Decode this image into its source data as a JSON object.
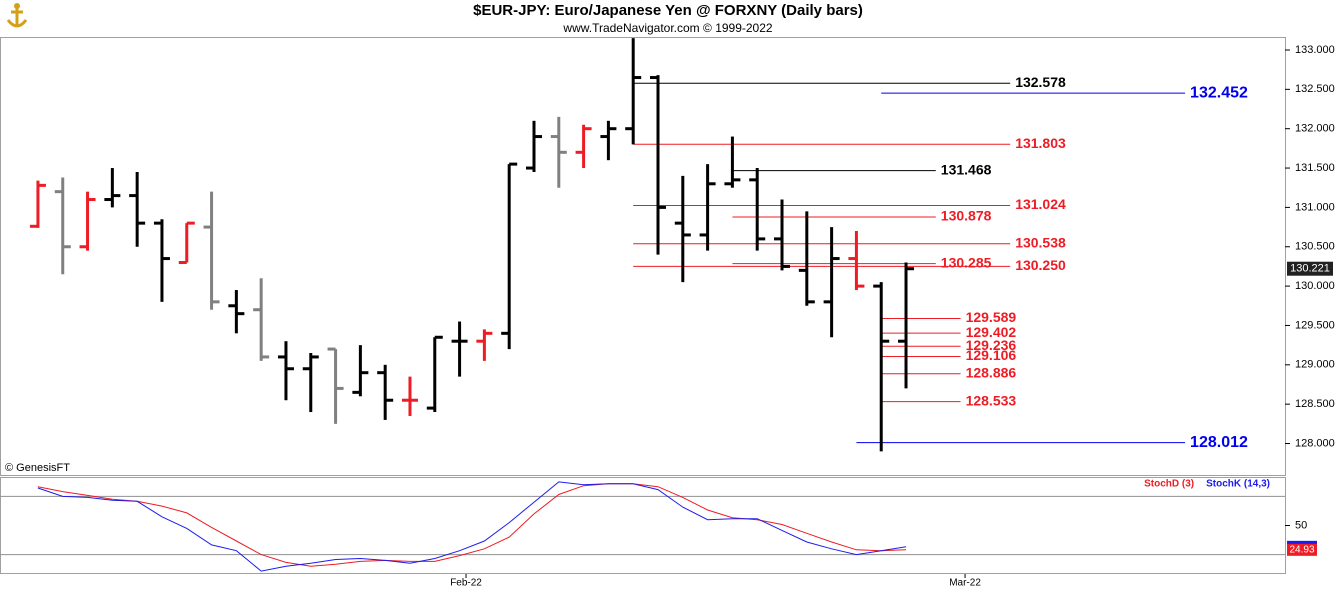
{
  "chart_data": [
    {
      "type": "ohlc",
      "title": "$EUR-JPY:  Euro/Japanese Yen @ FORXNY  (Daily bars)",
      "subtitle": "www.TradeNavigator.com © 1999-2022",
      "source": "© GenesisFT",
      "categories": [
        null,
        null,
        null,
        null,
        null,
        null,
        null,
        null,
        null,
        null,
        null,
        null,
        null,
        null,
        null,
        null,
        null,
        null,
        null,
        null,
        null,
        null,
        null,
        null,
        null,
        null,
        null,
        null,
        null,
        null,
        null,
        null,
        null,
        null,
        null,
        null
      ],
      "open": [
        130.76,
        131.2,
        130.5,
        131.1,
        131.15,
        130.8,
        130.3,
        130.75,
        129.75,
        129.7,
        129.1,
        128.95,
        129.2,
        128.65,
        128.9,
        128.55,
        128.45,
        129.3,
        129.3,
        129.4,
        131.5,
        131.9,
        131.7,
        131.9,
        132.0,
        132.65,
        130.8,
        130.65,
        131.3,
        131.35,
        130.6,
        130.2,
        129.8,
        130.35,
        130.0,
        129.3
      ],
      "high": [
        131.34,
        131.38,
        131.2,
        131.5,
        131.45,
        130.85,
        130.8,
        131.2,
        129.95,
        130.1,
        129.3,
        129.15,
        129.2,
        129.25,
        129.0,
        128.85,
        129.35,
        129.55,
        129.45,
        131.55,
        132.1,
        132.15,
        132.05,
        132.1,
        133.15,
        132.68,
        131.4,
        131.55,
        131.9,
        131.5,
        131.1,
        130.95,
        130.75,
        130.7,
        130.05,
        130.3
      ],
      "low": [
        130.74,
        130.15,
        130.45,
        131.0,
        130.5,
        129.8,
        130.3,
        129.7,
        129.4,
        129.05,
        128.55,
        128.4,
        128.25,
        128.6,
        128.3,
        128.35,
        128.4,
        128.85,
        129.05,
        129.2,
        131.45,
        131.25,
        131.5,
        131.6,
        131.8,
        130.4,
        130.05,
        130.45,
        131.25,
        130.45,
        130.2,
        129.75,
        129.35,
        129.95,
        127.9,
        128.7
      ],
      "close": [
        131.28,
        130.5,
        131.1,
        131.15,
        130.8,
        130.35,
        130.8,
        129.8,
        129.65,
        129.1,
        128.95,
        129.1,
        128.7,
        128.9,
        128.55,
        128.55,
        129.35,
        129.3,
        129.4,
        131.55,
        131.9,
        131.7,
        132.0,
        132.0,
        132.65,
        131.0,
        130.65,
        131.3,
        131.35,
        130.6,
        130.25,
        129.8,
        130.35,
        130.0,
        129.3,
        130.221
      ],
      "colors": [
        "#ee1c24",
        "#808080",
        "#ee1c24",
        "#000000",
        "#000000",
        "#000000",
        "#ee1c24",
        "#808080",
        "#000000",
        "#808080",
        "#000000",
        "#000000",
        "#808080",
        "#000000",
        "#000000",
        "#ee1c24",
        "#000000",
        "#000000",
        "#ee1c24",
        "#000000",
        "#000000",
        "#808080",
        "#ee1c24",
        "#000000",
        "#000000",
        "#000000",
        "#000000",
        "#000000",
        "#000000",
        "#000000",
        "#000000",
        "#000000",
        "#000000",
        "#ee1c24",
        "#000000",
        "#000000"
      ],
      "xlim": [
        -1.53,
        50.28
      ],
      "ylim": [
        127.6,
        133.165
      ],
      "yticks": [
        {
          "value": 128,
          "label": "128.000"
        },
        {
          "value": 128.5,
          "label": "128.500"
        },
        {
          "value": 129,
          "label": "129.000"
        },
        {
          "value": 129.5,
          "label": "129.500"
        },
        {
          "value": 130,
          "label": "130.000"
        },
        {
          "value": 130.5,
          "label": "130.500"
        },
        {
          "value": 131,
          "label": "131.000"
        },
        {
          "value": 131.5,
          "label": "131.500"
        },
        {
          "value": 132,
          "label": "132.000"
        },
        {
          "value": 132.5,
          "label": "132.500"
        },
        {
          "value": 133,
          "label": "133.000"
        }
      ],
      "levels": [
        {
          "value": 132.578,
          "label": "132.578",
          "color": "#000000",
          "start": 24,
          "end": 39.2
        },
        {
          "value": 132.452,
          "label": "132.452",
          "color": "#0000ee",
          "start": 34,
          "end": 46.25
        },
        {
          "value": 131.803,
          "label": "131.803",
          "color": "#ee1c24",
          "start": 24,
          "end": 39.2
        },
        {
          "value": 131.468,
          "label": "131.468",
          "color": "#000000",
          "start": 28,
          "end": 36.2
        },
        {
          "value": 131.024,
          "label": "131.024",
          "color": "#ee1c24",
          "start": 24,
          "end": 39.2
        },
        {
          "value": 130.878,
          "label": "130.878",
          "color": "#ee1c24",
          "start": 28,
          "end": 36.2
        },
        {
          "value": 130.538,
          "label": "130.538",
          "color": "#ee1c24",
          "start": 24,
          "end": 39.2
        },
        {
          "value": 130.285,
          "label": "130.285",
          "color": "#ee1c24",
          "start": 28,
          "end": 36.2
        },
        {
          "value": 130.25,
          "label": "130.250",
          "color": "#ee1c24",
          "start": 24,
          "end": 39.2
        },
        {
          "value": 129.589,
          "label": "129.589",
          "color": "#ee1c24",
          "start": 34,
          "end": 37.2
        },
        {
          "value": 129.402,
          "label": "129.402",
          "color": "#ee1c24",
          "start": 34,
          "end": 37.2
        },
        {
          "value": 129.236,
          "label": "129.236",
          "color": "#ee1c24",
          "start": 34,
          "end": 37.2
        },
        {
          "value": 129.106,
          "label": "129.106",
          "color": "#ee1c24",
          "start": 34,
          "end": 37.2
        },
        {
          "value": 128.886,
          "label": "128.886",
          "color": "#ee1c24",
          "start": 34,
          "end": 37.2
        },
        {
          "value": 128.533,
          "label": "128.533",
          "color": "#ee1c24",
          "start": 34,
          "end": 37.2
        },
        {
          "value": 128.012,
          "label": "128.012",
          "color": "#0000ee",
          "start": 33,
          "end": 46.25
        }
      ]
    },
    {
      "type": "line",
      "categories": [
        null,
        null,
        null,
        null,
        null,
        null,
        null,
        null,
        null,
        null,
        null,
        null,
        null,
        null,
        null,
        null,
        null,
        null,
        null,
        null,
        null,
        null,
        null,
        null,
        null,
        null,
        null,
        null,
        null,
        null,
        null,
        null,
        null,
        null,
        null,
        null
      ],
      "series": [
        {
          "name": "StochD (3)",
          "color": "#ee1c24",
          "values": [
            90,
            85,
            81,
            77,
            75,
            70,
            63,
            48,
            34,
            20,
            12,
            8,
            10,
            13,
            14,
            13,
            13,
            19,
            26,
            38,
            62,
            82,
            91,
            93,
            93,
            90,
            79,
            66,
            58,
            56,
            51,
            42,
            33,
            25,
            24,
            24.93
          ]
        },
        {
          "name": "StochK (14,3)",
          "color": "#1c1cee",
          "values": [
            88.7,
            80,
            79,
            76,
            75,
            59,
            47,
            30,
            24,
            3,
            8,
            11,
            15,
            16,
            14,
            11,
            16,
            24,
            34,
            53,
            74,
            95,
            92,
            93,
            93,
            87,
            69,
            56,
            57,
            57,
            45,
            33,
            26,
            20,
            24,
            28
          ]
        }
      ],
      "xlim": [
        -1.53,
        50.28
      ],
      "xticks": [
        {
          "value": 17.26,
          "label": "Feb-22"
        },
        {
          "value": 37.38,
          "label": "Mar-22"
        }
      ],
      "ylim": [
        0,
        100
      ],
      "yticks": [
        50
      ],
      "levels": [
        20,
        80
      ]
    }
  ]
}
